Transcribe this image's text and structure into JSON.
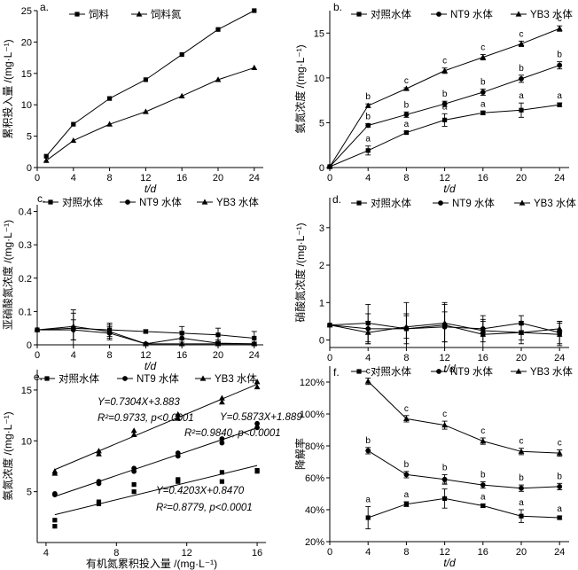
{
  "figure_title": "",
  "chart_data": [
    {
      "id": "a",
      "panel_label": "a.",
      "type": "line",
      "xlabel": "t/d",
      "ylabel": "累积投入量 /(mg·L⁻¹)",
      "xlim": [
        0,
        25
      ],
      "ylim": [
        0,
        25
      ],
      "xticks": [
        0,
        4,
        8,
        12,
        16,
        20,
        24
      ],
      "yticks": [
        0,
        5,
        10,
        15,
        20,
        25
      ],
      "x": [
        1,
        4,
        8,
        12,
        16,
        20,
        24
      ],
      "series": [
        {
          "name": "饲料",
          "marker": "square",
          "values": [
            1.8,
            6.9,
            11.0,
            14.0,
            18.0,
            22.0,
            25.0
          ]
        },
        {
          "name": "饲料氮",
          "marker": "triangle",
          "values": [
            1.1,
            4.3,
            6.9,
            8.9,
            11.4,
            14.0,
            15.9
          ]
        }
      ]
    },
    {
      "id": "b",
      "panel_label": "b.",
      "type": "line",
      "xlabel": "t/d",
      "ylabel": "氨氮浓度 /(mg·L⁻¹)",
      "xlim": [
        0,
        25
      ],
      "ylim": [
        0,
        17.5
      ],
      "xticks": [
        0,
        4,
        8,
        12,
        16,
        20,
        24
      ],
      "yticks": [
        0,
        5,
        10,
        15
      ],
      "x": [
        0,
        4,
        8,
        12,
        16,
        20,
        24
      ],
      "series": [
        {
          "name": "对照水体",
          "marker": "square",
          "values": [
            0.1,
            1.9,
            3.9,
            5.3,
            6.1,
            6.4,
            7.0
          ],
          "errors": [
            0,
            0.5,
            0.15,
            0.7,
            0.2,
            0.8,
            0.2
          ],
          "letters": [
            "",
            "a",
            "a",
            "a",
            "a",
            "a",
            "a"
          ]
        },
        {
          "name": "NT9 水体",
          "marker": "circle",
          "values": [
            0.1,
            4.7,
            5.9,
            7.1,
            8.4,
            9.9,
            11.4
          ],
          "errors": [
            0,
            0.2,
            0.3,
            0.3,
            0.35,
            0.4,
            0.4
          ],
          "letters": [
            "",
            "b",
            "b",
            "b",
            "b",
            "b",
            "b"
          ]
        },
        {
          "name": "YB3 水体",
          "marker": "triangle",
          "values": [
            0.1,
            6.9,
            8.8,
            10.8,
            12.3,
            13.8,
            15.5
          ],
          "errors": [
            0,
            0.2,
            0.1,
            0.3,
            0.3,
            0.3,
            0.3
          ],
          "letters": [
            "",
            "b",
            "c",
            "c",
            "c",
            "c",
            "c"
          ]
        }
      ]
    },
    {
      "id": "c",
      "panel_label": "c.",
      "type": "line",
      "xlabel": "t/d",
      "ylabel": "亚硝酸氮浓度 /(mg·L⁻¹)",
      "xlim": [
        0,
        25
      ],
      "ylim": [
        0,
        0.42
      ],
      "xticks": [
        0,
        4,
        8,
        12,
        16,
        20,
        24
      ],
      "yticks": [
        0.0,
        0.1,
        0.2,
        0.3,
        0.4
      ],
      "x": [
        0,
        4,
        8,
        12,
        16,
        20,
        24
      ],
      "series": [
        {
          "name": "对照水体",
          "marker": "square",
          "values": [
            0.045,
            0.05,
            0.045,
            0.04,
            0.035,
            0.03,
            0.02
          ],
          "errors": [
            0,
            0.055,
            0.02,
            0.005,
            0.02,
            0.02,
            0.02
          ]
        },
        {
          "name": "NT9 水体",
          "marker": "circle",
          "values": [
            0.045,
            0.045,
            0.035,
            0.003,
            0.02,
            0.005,
            0.003
          ],
          "errors": [
            0,
            0.03,
            0.02,
            0.003,
            0.02,
            0.01,
            0.005
          ]
        },
        {
          "name": "YB3 水体",
          "marker": "triangle",
          "values": [
            0.045,
            0.055,
            0.04,
            0.003,
            0.003,
            0.003,
            0.003
          ],
          "errors": [
            0,
            0.04,
            0.02,
            0.003,
            0.005,
            0.005,
            0.005
          ]
        }
      ]
    },
    {
      "id": "d",
      "panel_label": "d.",
      "type": "line",
      "xlabel": "t/d",
      "ylabel": "硝酸氮浓度 /(mg·L⁻¹)",
      "xlim": [
        0,
        25
      ],
      "ylim": [
        -0.2,
        3.8
      ],
      "xticks": [
        0,
        4,
        8,
        12,
        16,
        20,
        24
      ],
      "yticks": [
        0,
        1,
        2,
        3
      ],
      "x": [
        0,
        4,
        8,
        12,
        16,
        20,
        24
      ],
      "series": [
        {
          "name": "对照水体",
          "marker": "square",
          "values": [
            0.4,
            0.45,
            0.3,
            0.4,
            0.15,
            0.2,
            0.15
          ],
          "errors": [
            0,
            0.5,
            0.4,
            0.6,
            0.5,
            0.3,
            0.3
          ]
        },
        {
          "name": "NT9 水体",
          "marker": "circle",
          "values": [
            0.4,
            0.3,
            0.3,
            0.35,
            0.3,
            0.45,
            0.2
          ],
          "errors": [
            0,
            0.4,
            0.7,
            0.4,
            0.2,
            0.2,
            0.3
          ]
        },
        {
          "name": "YB3 水体",
          "marker": "triangle",
          "values": [
            0.4,
            0.2,
            0.35,
            0.45,
            0.25,
            0.2,
            0.3
          ],
          "errors": [
            0,
            0.3,
            0.3,
            0.5,
            0.3,
            0.2,
            0.2
          ]
        }
      ]
    },
    {
      "id": "e",
      "panel_label": "e.",
      "type": "scatter",
      "xlabel": "有机氮累积投入量 /(mg·L⁻¹)",
      "ylabel": "氨氮浓度 /(mg·L⁻¹)",
      "xlim": [
        3.5,
        16.5
      ],
      "ylim": [
        0,
        17
      ],
      "xticks": [
        4,
        8,
        12,
        16
      ],
      "yticks": [
        5,
        10,
        15
      ],
      "series": [
        {
          "name": "对照水体",
          "marker": "square",
          "x": [
            4.5,
            4.5,
            7.0,
            7.0,
            9.0,
            9.0,
            11.5,
            11.5,
            14.0,
            14.0,
            16.0,
            16.0
          ],
          "values": [
            1.6,
            2.2,
            3.8,
            4.0,
            5.0,
            5.7,
            6.0,
            6.2,
            6.0,
            6.9,
            7.0,
            7.1
          ],
          "fit": {
            "slope": 0.4203,
            "intercept": 0.847
          },
          "equation": "Y=0.4203X+0.8470",
          "stats": "R²=0.8779, p<0.0001"
        },
        {
          "name": "NT9 水体",
          "marker": "circle",
          "x": [
            4.5,
            4.5,
            7.0,
            7.0,
            9.0,
            9.0,
            11.5,
            11.5,
            14.0,
            14.0,
            16.0,
            16.0
          ],
          "values": [
            4.7,
            4.8,
            5.8,
            6.0,
            7.0,
            7.3,
            8.5,
            8.8,
            9.8,
            10.2,
            11.3,
            11.7
          ],
          "fit": {
            "slope": 0.5873,
            "intercept": 1.889
          },
          "equation": "Y=0.5873X+1.889",
          "stats": "R²=0.9840, p<0.0001"
        },
        {
          "name": "YB3 水体",
          "marker": "triangle",
          "x": [
            4.5,
            4.5,
            7.0,
            7.0,
            9.0,
            9.0,
            11.5,
            11.5,
            14.0,
            14.0,
            16.0,
            16.0
          ],
          "values": [
            6.8,
            7.0,
            8.7,
            9.0,
            10.6,
            11.0,
            12.2,
            12.6,
            13.8,
            14.2,
            15.3,
            15.8
          ],
          "fit": {
            "slope": 0.7304,
            "intercept": 3.883
          },
          "equation": "Y=0.7304X+3.883",
          "stats": "R²=0.9733, p<0.0001"
        }
      ]
    },
    {
      "id": "f",
      "panel_label": "f.",
      "type": "line",
      "xlabel": "t/d",
      "ylabel": "降解率",
      "xlim": [
        0,
        25
      ],
      "ylim": [
        20,
        130
      ],
      "xticks": [
        0,
        4,
        8,
        12,
        16,
        20,
        24
      ],
      "yticks": [
        20,
        40,
        60,
        80,
        100,
        120
      ],
      "ytick_labels": [
        "20%",
        "40%",
        "60%",
        "80%",
        "100%",
        "120%"
      ],
      "x": [
        4,
        8,
        12,
        16,
        20,
        24
      ],
      "series": [
        {
          "name": "对照水体",
          "marker": "square",
          "values": [
            35,
            43.5,
            47,
            42.5,
            36,
            35
          ],
          "errors": [
            7,
            1.5,
            6,
            1,
            4,
            1
          ],
          "letters": [
            "a",
            "a",
            "a",
            "a",
            "a",
            "a"
          ]
        },
        {
          "name": "NT9 水体",
          "marker": "circle",
          "values": [
            77,
            62,
            59,
            55.5,
            53.5,
            54.5
          ],
          "errors": [
            2,
            2,
            3,
            2,
            2,
            2
          ],
          "letters": [
            "b",
            "b",
            "b",
            "b",
            "b",
            "b"
          ]
        },
        {
          "name": "YB3 水体",
          "marker": "triangle",
          "values": [
            120.5,
            97,
            93,
            83,
            76.5,
            75.5
          ],
          "errors": [
            2,
            2,
            2.5,
            2,
            2,
            2
          ],
          "letters": [
            "c",
            "c",
            "c",
            "c",
            "c",
            "c"
          ]
        }
      ]
    }
  ]
}
